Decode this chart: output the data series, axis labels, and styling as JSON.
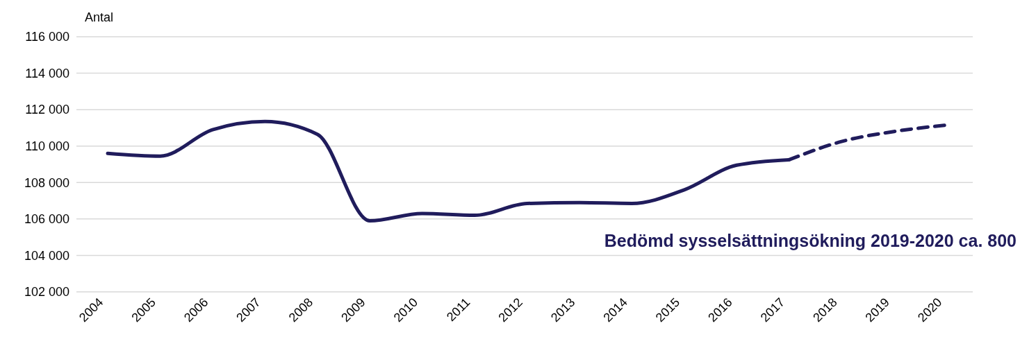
{
  "chart_data": {
    "type": "line",
    "ylabel": "Antal",
    "categories": [
      "2004",
      "2005",
      "2006",
      "2007",
      "2008",
      "2009",
      "2010",
      "2011",
      "2012",
      "2013",
      "2014",
      "2015",
      "2016",
      "2017",
      "2018",
      "2019",
      "2020"
    ],
    "series": [
      {
        "color": "#201c5c",
        "line_style": "solid",
        "values": [
          109600,
          109450,
          110900,
          111350,
          110650,
          105900,
          106300,
          106200,
          106850,
          106900,
          106850,
          107600,
          108950,
          109250,
          null,
          null,
          null
        ]
      },
      {
        "color": "#201c5c",
        "line_style": "dashed",
        "values": [
          null,
          null,
          null,
          null,
          null,
          null,
          null,
          null,
          null,
          null,
          null,
          null,
          null,
          109250,
          110250,
          110800,
          111150
        ]
      }
    ],
    "ylim": [
      102000,
      116000
    ],
    "yticks": [
      {
        "value": 102000,
        "label": "102 000"
      },
      {
        "value": 104000,
        "label": "104 000"
      },
      {
        "value": 106000,
        "label": "106 000"
      },
      {
        "value": 108000,
        "label": "108 000"
      },
      {
        "value": 110000,
        "label": "110 000"
      },
      {
        "value": 112000,
        "label": "112 000"
      },
      {
        "value": 114000,
        "label": "114 000"
      },
      {
        "value": 116000,
        "label": "116 000"
      }
    ],
    "grid": "y",
    "annotations": [
      "Bedömd sysselsättningsökning 2019-2020 ca. 800"
    ]
  }
}
